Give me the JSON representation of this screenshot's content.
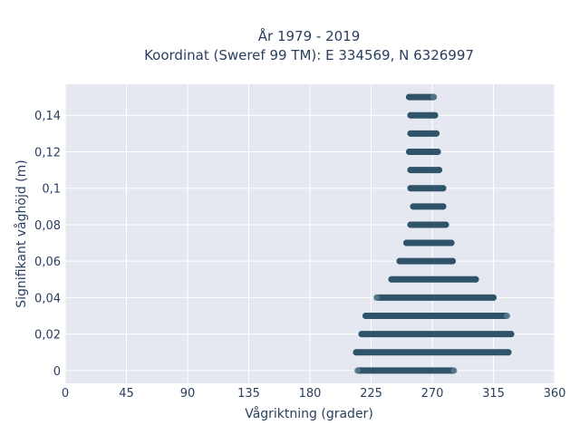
{
  "chart_data": {
    "type": "scatter",
    "title": [
      "År 1979 - 2019",
      "Koordinat (Sweref 99 TM): E 334569, N 6326997"
    ],
    "xlabel": "Vågriktning (grader)",
    "ylabel": "Signifikant våghöjd (m)",
    "xlim": [
      0,
      360
    ],
    "ylim": [
      -0.007,
      0.157
    ],
    "x_ticks": [
      0,
      45,
      90,
      135,
      180,
      225,
      270,
      315,
      360
    ],
    "x_tick_labels": [
      "0",
      "45",
      "90",
      "135",
      "180",
      "225",
      "270",
      "315",
      "360"
    ],
    "y_ticks": [
      0,
      0.02,
      0.04,
      0.06,
      0.08,
      0.1,
      0.12,
      0.14
    ],
    "y_tick_labels": [
      "0",
      "0,02",
      "0,04",
      "0,06",
      "0,08",
      "0,1",
      "0,12",
      "0,14"
    ],
    "grid": true,
    "colors": {
      "marker": "#2f5469",
      "plot_bg": "#e5e8f0",
      "grid": "#ffffff",
      "text": "#2a3f5f"
    },
    "series": [
      {
        "rows": [
          {
            "y": 0.0,
            "x_min": 216,
            "x_max": 285
          },
          {
            "y": 0.01,
            "x_min": 214,
            "x_max": 326
          },
          {
            "y": 0.02,
            "x_min": 218,
            "x_max": 328
          },
          {
            "y": 0.03,
            "x_min": 221,
            "x_max": 324
          },
          {
            "y": 0.04,
            "x_min": 230,
            "x_max": 315
          },
          {
            "y": 0.05,
            "x_min": 240,
            "x_max": 302
          },
          {
            "y": 0.06,
            "x_min": 246,
            "x_max": 285
          },
          {
            "y": 0.07,
            "x_min": 251,
            "x_max": 284
          },
          {
            "y": 0.08,
            "x_min": 254,
            "x_max": 280
          },
          {
            "y": 0.09,
            "x_min": 256,
            "x_max": 278
          },
          {
            "y": 0.1,
            "x_min": 254,
            "x_max": 278
          },
          {
            "y": 0.11,
            "x_min": 254,
            "x_max": 275
          },
          {
            "y": 0.12,
            "x_min": 253,
            "x_max": 274
          },
          {
            "y": 0.13,
            "x_min": 254,
            "x_max": 273
          },
          {
            "y": 0.14,
            "x_min": 254,
            "x_max": 272
          },
          {
            "y": 0.15,
            "x_min": 253,
            "x_max": 271
          }
        ],
        "outliers": [
          {
            "x": 215,
            "y": 0.0
          },
          {
            "x": 286,
            "y": 0.0
          },
          {
            "x": 229,
            "y": 0.04
          },
          {
            "x": 325,
            "y": 0.03
          },
          {
            "x": 271,
            "y": 0.15
          }
        ]
      }
    ]
  }
}
